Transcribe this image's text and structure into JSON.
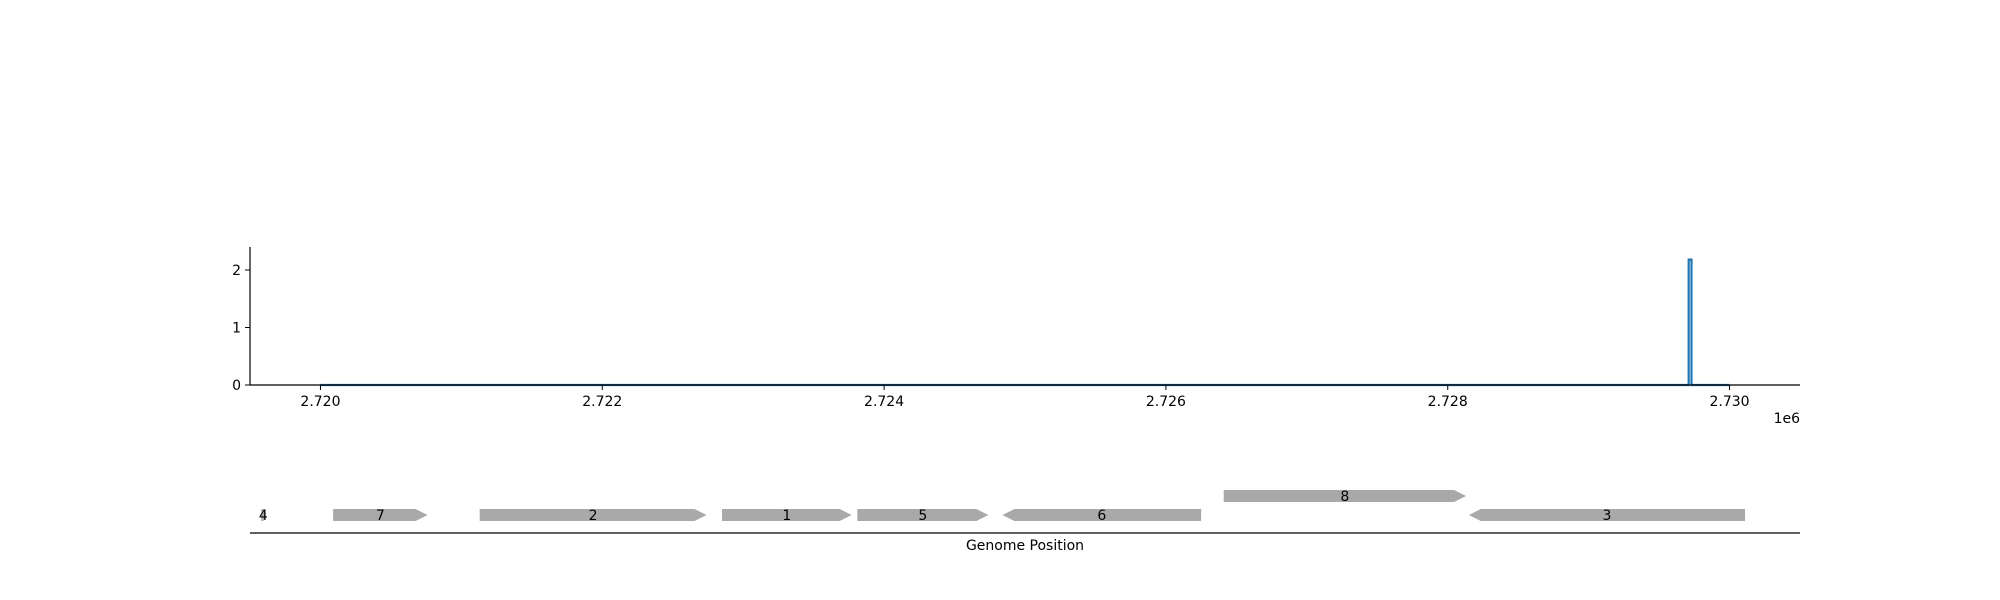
{
  "chart_data": [
    {
      "type": "line",
      "title": "",
      "xlabel": "",
      "ylabel": "",
      "x_offset_label": "1e6",
      "xlim": [
        2719500,
        2730500
      ],
      "ylim": [
        0,
        2.4
      ],
      "x_ticks": [
        2720000,
        2722000,
        2724000,
        2726000,
        2728000,
        2730000
      ],
      "x_tick_labels": [
        "2.720",
        "2.722",
        "2.724",
        "2.726",
        "2.728",
        "2.730"
      ],
      "y_ticks": [
        0,
        1,
        2
      ],
      "y_tick_labels": [
        "0",
        "1",
        "2"
      ],
      "grid": false,
      "legend": "none",
      "color": "#1f77b4",
      "series": [
        {
          "x": [
            2720000,
            2729710,
            2729710,
            2729730,
            2729730,
            2730000
          ],
          "y": [
            0,
            0,
            2.18,
            2.18,
            0,
            0
          ]
        }
      ]
    },
    {
      "type": "gene-track",
      "xlabel": "Genome Position",
      "xlim": [
        2719500,
        2730500
      ],
      "color": "#a9a9a9",
      "genes": [
        {
          "label": "4",
          "start": 2719580,
          "end": 2719610,
          "strand": 1,
          "row": 0
        },
        {
          "label": "7",
          "start": 2720090,
          "end": 2720760,
          "strand": 1,
          "row": 0
        },
        {
          "label": "2",
          "start": 2721130,
          "end": 2722740,
          "strand": 1,
          "row": 0
        },
        {
          "label": "1",
          "start": 2722850,
          "end": 2723770,
          "strand": 1,
          "row": 0
        },
        {
          "label": "5",
          "start": 2723810,
          "end": 2724740,
          "strand": 1,
          "row": 0
        },
        {
          "label": "6",
          "start": 2724840,
          "end": 2726250,
          "strand": -1,
          "row": 0
        },
        {
          "label": "8",
          "start": 2726410,
          "end": 2728130,
          "strand": 1,
          "row": 1
        },
        {
          "label": "3",
          "start": 2728150,
          "end": 2730110,
          "strand": -1,
          "row": 0
        }
      ]
    }
  ]
}
